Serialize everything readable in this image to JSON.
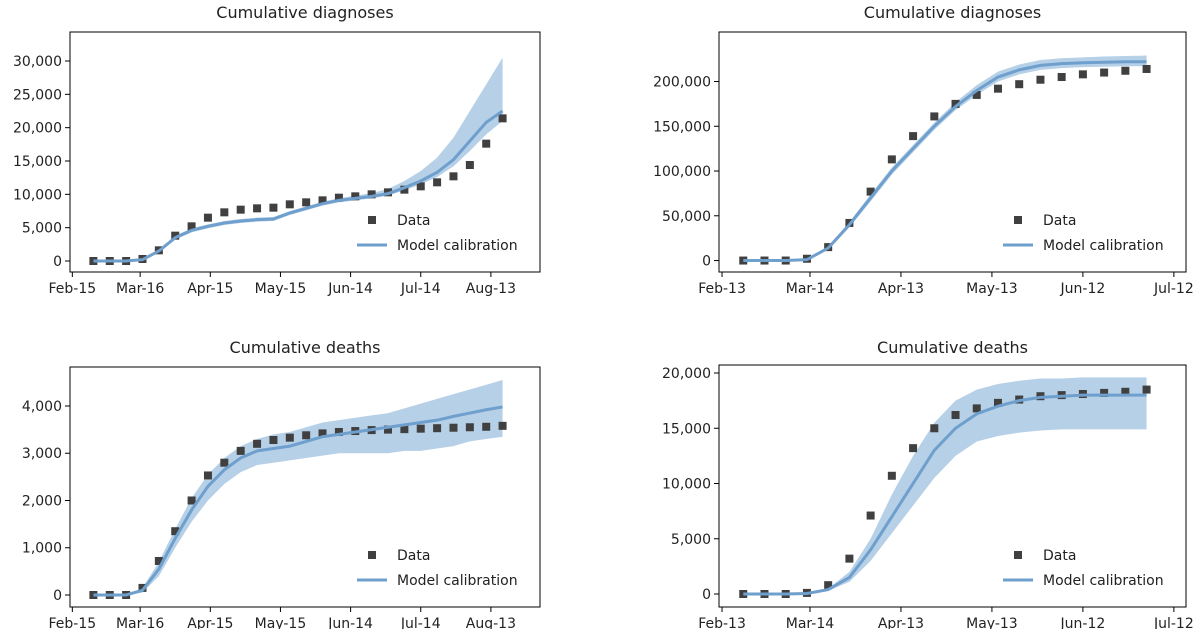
{
  "chart_data": [
    {
      "type": "line",
      "title": "Cumulative diagnoses",
      "x": [
        9,
        16,
        23,
        30,
        37,
        44,
        51,
        58,
        65,
        72,
        79,
        86,
        93,
        100,
        107,
        114,
        121,
        128,
        135,
        142,
        149,
        156,
        163,
        170,
        177,
        184
      ],
      "xlim": [
        -1,
        200
      ],
      "xticks": [
        {
          "value": 0,
          "label": "Feb-15"
        },
        {
          "value": 29,
          "label": "Mar-16"
        },
        {
          "value": 59,
          "label": "Apr-15"
        },
        {
          "value": 89,
          "label": "May-15"
        },
        {
          "value": 119,
          "label": "Jun-14"
        },
        {
          "value": 149,
          "label": "Jul-14"
        },
        {
          "value": 179,
          "label": "Aug-13"
        }
      ],
      "ylim": [
        -1650,
        34350
      ],
      "yticks": [
        0,
        {
          "value": 5000,
          "label": "5,000"
        },
        {
          "value": 10000,
          "label": "10,000"
        },
        {
          "value": 15000,
          "label": "15,000"
        },
        {
          "value": 20000,
          "label": "20,000"
        },
        {
          "value": 25000,
          "label": "25,000"
        },
        {
          "value": 30000,
          "label": "30,000"
        }
      ],
      "legend": "lower right",
      "series": [
        {
          "name": "Data",
          "color": "#404040",
          "values": [
            0,
            0,
            0,
            300,
            1600,
            3800,
            5200,
            6500,
            7300,
            7700,
            7900,
            8000,
            8500,
            8800,
            9100,
            9500,
            9700,
            10000,
            10300,
            10700,
            11200,
            11800,
            12700,
            14400,
            17600,
            21400
          ]
        },
        {
          "name": "Model calibration",
          "color": "#6f9fcc",
          "band_color": "#b6d0e8",
          "values": [
            0,
            0,
            0,
            200,
            1500,
            3500,
            4600,
            5200,
            5700,
            6000,
            6200,
            6300,
            7200,
            7900,
            8600,
            9100,
            9400,
            9700,
            10100,
            11000,
            12000,
            13300,
            15200,
            18000,
            20800,
            22500
          ],
          "upper": [
            0,
            0,
            0,
            300,
            1700,
            3800,
            4900,
            5500,
            6000,
            6300,
            6500,
            6600,
            7500,
            8200,
            8900,
            9400,
            9800,
            10200,
            10800,
            12000,
            13500,
            15500,
            18500,
            22500,
            26500,
            30500
          ],
          "lower": [
            0,
            0,
            0,
            100,
            1300,
            3200,
            4300,
            4900,
            5400,
            5700,
            5900,
            6000,
            6900,
            7600,
            8300,
            8800,
            9100,
            9400,
            9800,
            10600,
            11500,
            12600,
            14200,
            16500,
            19000,
            21000
          ]
        }
      ]
    },
    {
      "type": "line",
      "title": "Cumulative diagnoses",
      "x": [
        7,
        14,
        21,
        28,
        35,
        42,
        49,
        56,
        63,
        70,
        77,
        84,
        91,
        98,
        105,
        112,
        119,
        126,
        133,
        140
      ],
      "xlim": [
        -1,
        153
      ],
      "xticks": [
        {
          "value": 0,
          "label": "Feb-13"
        },
        {
          "value": 29,
          "label": "Mar-14"
        },
        {
          "value": 59,
          "label": "Apr-13"
        },
        {
          "value": 89,
          "label": "May-13"
        },
        {
          "value": 119,
          "label": "Jun-12"
        },
        {
          "value": 149,
          "label": "Jul-12"
        }
      ],
      "ylim": [
        -12800,
        255300
      ],
      "yticks": [
        0,
        {
          "value": 50000,
          "label": "50,000"
        },
        {
          "value": 100000,
          "label": "100,000"
        },
        {
          "value": 150000,
          "label": "150,000"
        },
        {
          "value": 200000,
          "label": "200,000"
        }
      ],
      "legend": "lower right",
      "series": [
        {
          "name": "Data",
          "color": "#404040",
          "values": [
            0,
            0,
            0,
            2000,
            15000,
            42000,
            77000,
            113000,
            139000,
            161000,
            175000,
            185000,
            192000,
            197000,
            202000,
            205000,
            208000,
            210000,
            212000,
            214000
          ]
        },
        {
          "name": "Model calibration",
          "color": "#6f9fcc",
          "band_color": "#b6d0e8",
          "values": [
            0,
            0,
            0,
            1000,
            14000,
            40000,
            70000,
            100000,
            125000,
            150000,
            172000,
            190000,
            205000,
            213000,
            218000,
            220000,
            221000,
            221500,
            222000,
            222000
          ],
          "upper": [
            0,
            0,
            0,
            2000,
            16000,
            43000,
            74000,
            104000,
            129000,
            154000,
            177000,
            196000,
            211000,
            219000,
            224000,
            226000,
            227000,
            228000,
            228500,
            229000
          ],
          "lower": [
            0,
            0,
            0,
            500,
            12000,
            37000,
            66000,
            96000,
            121000,
            146000,
            168000,
            185000,
            200000,
            208000,
            213000,
            215000,
            216000,
            216500,
            217000,
            217000
          ]
        }
      ]
    },
    {
      "type": "line",
      "title": "Cumulative deaths",
      "x": [
        9,
        16,
        23,
        30,
        37,
        44,
        51,
        58,
        65,
        72,
        79,
        86,
        93,
        100,
        107,
        114,
        121,
        128,
        135,
        142,
        149,
        156,
        163,
        170,
        177,
        184
      ],
      "xlim": [
        -1,
        200
      ],
      "xticks": [
        {
          "value": 0,
          "label": "Feb-15"
        },
        {
          "value": 29,
          "label": "Mar-16"
        },
        {
          "value": 59,
          "label": "Apr-15"
        },
        {
          "value": 89,
          "label": "May-15"
        },
        {
          "value": 119,
          "label": "Jun-14"
        },
        {
          "value": 149,
          "label": "Jul-14"
        },
        {
          "value": 179,
          "label": "Aug-13"
        }
      ],
      "ylim": [
        -254,
        4825
      ],
      "yticks": [
        0,
        {
          "value": 1000,
          "label": "1,000"
        },
        {
          "value": 2000,
          "label": "2,000"
        },
        {
          "value": 3000,
          "label": "3,000"
        },
        {
          "value": 4000,
          "label": "4,000"
        }
      ],
      "legend": "lower right",
      "series": [
        {
          "name": "Data",
          "color": "#404040",
          "values": [
            0,
            0,
            0,
            150,
            720,
            1350,
            2000,
            2530,
            2800,
            3050,
            3200,
            3280,
            3330,
            3380,
            3420,
            3450,
            3470,
            3490,
            3500,
            3510,
            3520,
            3530,
            3540,
            3550,
            3560,
            3580
          ]
        },
        {
          "name": "Model calibration",
          "color": "#6f9fcc",
          "band_color": "#b6d0e8",
          "values": [
            0,
            0,
            0,
            100,
            550,
            1200,
            1800,
            2300,
            2650,
            2900,
            3050,
            3100,
            3150,
            3250,
            3350,
            3400,
            3450,
            3500,
            3550,
            3600,
            3650,
            3700,
            3780,
            3850,
            3920,
            3980
          ],
          "upper": [
            0,
            0,
            0,
            150,
            700,
            1400,
            2050,
            2550,
            2900,
            3150,
            3300,
            3400,
            3450,
            3550,
            3650,
            3700,
            3750,
            3800,
            3850,
            3950,
            4050,
            4150,
            4250,
            4350,
            4450,
            4550
          ],
          "lower": [
            0,
            0,
            0,
            50,
            400,
            1000,
            1550,
            2000,
            2350,
            2600,
            2750,
            2800,
            2850,
            2900,
            2950,
            3000,
            3000,
            3000,
            3000,
            3050,
            3050,
            3100,
            3150,
            3250,
            3300,
            3350
          ]
        }
      ]
    },
    {
      "type": "line",
      "title": "Cumulative deaths",
      "x": [
        7,
        14,
        21,
        28,
        35,
        42,
        49,
        56,
        63,
        70,
        77,
        84,
        91,
        98,
        105,
        112,
        119,
        126,
        133,
        140
      ],
      "xlim": [
        -1,
        153
      ],
      "xticks": [
        {
          "value": 0,
          "label": "Feb-13"
        },
        {
          "value": 29,
          "label": "Mar-14"
        },
        {
          "value": 59,
          "label": "Apr-13"
        },
        {
          "value": 89,
          "label": "May-13"
        },
        {
          "value": 119,
          "label": "Jun-12"
        },
        {
          "value": 149,
          "label": "Jul-12"
        }
      ],
      "ylim": [
        -1176,
        20725
      ],
      "yticks": [
        0,
        {
          "value": 5000,
          "label": "5,000"
        },
        {
          "value": 10000,
          "label": "10,000"
        },
        {
          "value": 15000,
          "label": "15,000"
        },
        {
          "value": 20000,
          "label": "20,000"
        }
      ],
      "legend": "lower right",
      "series": [
        {
          "name": "Data",
          "color": "#404040",
          "values": [
            0,
            0,
            0,
            100,
            800,
            3200,
            7100,
            10700,
            13200,
            15000,
            16200,
            16800,
            17300,
            17600,
            17900,
            18000,
            18100,
            18200,
            18300,
            18500
          ]
        },
        {
          "name": "Model calibration",
          "color": "#6f9fcc",
          "band_color": "#b6d0e8",
          "values": [
            0,
            0,
            0,
            50,
            400,
            1500,
            4000,
            7000,
            10000,
            13000,
            15000,
            16300,
            17000,
            17500,
            17800,
            17900,
            18000,
            18000,
            18000,
            18000
          ],
          "upper": [
            0,
            0,
            0,
            100,
            500,
            2000,
            5000,
            9000,
            12500,
            15500,
            17500,
            18500,
            19000,
            19300,
            19500,
            19500,
            19600,
            19600,
            19600,
            19600
          ],
          "lower": [
            0,
            0,
            0,
            30,
            300,
            1100,
            3000,
            5500,
            8000,
            10500,
            12500,
            13800,
            14300,
            14600,
            14800,
            14900,
            14900,
            14900,
            14900,
            14900
          ]
        }
      ]
    }
  ]
}
